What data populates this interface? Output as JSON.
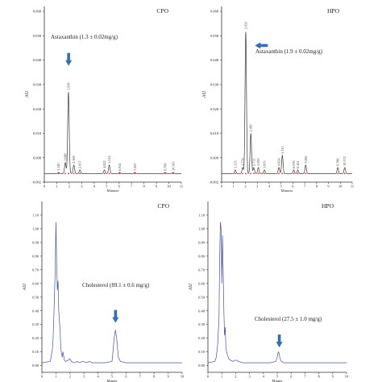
{
  "chart_data": [
    {
      "type": "line",
      "panel": "top-left",
      "title": "CPO",
      "ylabel": "AU",
      "xlabel": "Minutes",
      "xlim": [
        0,
        11
      ],
      "ylim": [
        -0.002,
        0.07
      ],
      "yticks": [
        "0.068",
        "0.058",
        "0.048",
        "0.038",
        "0.028",
        "0.018",
        "0.008",
        "-0.002"
      ],
      "ytick_values": [
        0.068,
        0.058,
        0.048,
        0.038,
        0.028,
        0.018,
        0.008,
        -0.002
      ],
      "xticks": [
        "0",
        "1",
        "2",
        "3",
        "4",
        "5",
        "6",
        "7",
        "8",
        "9",
        "10",
        "11"
      ],
      "annotation": "Astaxanthin (1.3 ± 0.02mg/g)",
      "arrow_target_x": 1.95,
      "arrow_target_y": 0.045,
      "peaks": [
        {
          "label": "1.140",
          "x": 1.14,
          "y": 0.002
        },
        {
          "label": "1.680",
          "x": 1.68,
          "y": 0.006
        },
        {
          "label": "1.936",
          "x": 1.936,
          "y": 0.035
        },
        {
          "label": "2.369",
          "x": 2.369,
          "y": 0.005
        },
        {
          "label": "2.857",
          "x": 2.857,
          "y": 0.003
        },
        {
          "label": "4.822",
          "x": 4.822,
          "y": 0.003
        },
        {
          "label": "5.214",
          "x": 5.214,
          "y": 0.005
        },
        {
          "label": "6.052",
          "x": 6.052,
          "y": 0.002
        },
        {
          "label": "7.267",
          "x": 7.267,
          "y": 0.002
        },
        {
          "label": "9.700",
          "x": 9.7,
          "y": 0.002
        },
        {
          "label": "10.345",
          "x": 10.345,
          "y": 0.002
        }
      ],
      "series_color": "#3a3a3a",
      "label_color": "#444444"
    },
    {
      "type": "line",
      "panel": "top-right",
      "title": "HPO",
      "ylabel": "AU",
      "xlabel": "Minutes",
      "xlim": [
        0,
        11
      ],
      "ylim": [
        -0.002,
        0.07
      ],
      "yticks": [
        "0.068",
        "0.058",
        "0.048",
        "0.038",
        "0.028",
        "0.018",
        "0.008",
        "-0.002"
      ],
      "ytick_values": [
        0.068,
        0.058,
        0.048,
        0.038,
        0.028,
        0.018,
        0.008,
        -0.002
      ],
      "xticks": [
        "0",
        "1",
        "2",
        "3",
        "4",
        "5",
        "6",
        "7",
        "8",
        "9",
        "10",
        "11"
      ],
      "annotation": "Astaxanthin (1.9 ± 0.02mg/g)",
      "arrow_target_x": 2.6,
      "arrow_target_y": 0.054,
      "peaks": [
        {
          "label": "1.153",
          "x": 1.153,
          "y": 0.003
        },
        {
          "label": "1.774",
          "x": 1.774,
          "y": 0.004
        },
        {
          "label": "2.033",
          "x": 2.033,
          "y": 0.06
        },
        {
          "label": "2.461",
          "x": 2.461,
          "y": 0.018
        },
        {
          "label": "2.711",
          "x": 2.711,
          "y": 0.004
        },
        {
          "label": "3.093",
          "x": 3.093,
          "y": 0.004
        },
        {
          "label": "3.603",
          "x": 3.603,
          "y": 0.003
        },
        {
          "label": "4.824",
          "x": 4.824,
          "y": 0.004
        },
        {
          "label": "5.115",
          "x": 5.115,
          "y": 0.009
        },
        {
          "label": "6.076",
          "x": 6.076,
          "y": 0.003
        },
        {
          "label": "6.421",
          "x": 6.421,
          "y": 0.003
        },
        {
          "label": "7.082",
          "x": 7.082,
          "y": 0.005
        },
        {
          "label": "9.786",
          "x": 9.786,
          "y": 0.004
        },
        {
          "label": "10.372",
          "x": 10.372,
          "y": 0.004
        }
      ],
      "series_color": "#3a3a3a",
      "label_color": "#444444"
    },
    {
      "type": "line",
      "panel": "bottom-left",
      "title": "CPO",
      "ylabel": "AU",
      "xlabel": "Minute",
      "xlim": [
        0,
        10
      ],
      "ylim": [
        -0.05,
        1.2
      ],
      "yticks": [
        "1.10",
        "1.00",
        "0.90",
        "0.80",
        "0.70",
        "0.60",
        "0.50",
        "0.40",
        "0.30",
        "0.20",
        "0.10",
        "0.00"
      ],
      "ytick_values": [
        1.1,
        1.0,
        0.9,
        0.8,
        0.7,
        0.6,
        0.5,
        0.4,
        0.3,
        0.2,
        0.1,
        0.0
      ],
      "xticks": [
        "0",
        "1",
        "2",
        "3",
        "4",
        "5",
        "6",
        "7",
        "8",
        "9",
        "10"
      ],
      "annotation": "Cholesterol (89.1 ± 0.6 mg/g)",
      "arrow_target_x": 5.25,
      "arrow_target_y": 0.3,
      "trace": {
        "x": [
          0,
          0.6,
          0.75,
          0.8,
          0.85,
          0.95,
          1.0,
          1.05,
          1.1,
          1.15,
          1.2,
          1.3,
          1.35,
          1.45,
          1.5,
          1.6,
          1.7,
          1.9,
          2.0,
          2.1,
          2.3,
          2.5,
          2.7,
          2.9,
          3.2,
          3.4,
          3.6,
          4.0,
          4.5,
          5.0,
          5.05,
          5.15,
          5.25,
          5.35,
          5.45,
          5.6,
          6.0,
          7.0,
          8.0,
          9.0,
          10.0
        ],
        "y": [
          0.02,
          0.03,
          0.12,
          0.2,
          0.35,
          0.7,
          1.05,
          0.75,
          0.55,
          0.62,
          0.4,
          0.25,
          0.12,
          0.06,
          0.1,
          0.04,
          0.03,
          0.04,
          0.05,
          0.03,
          0.02,
          0.03,
          0.02,
          0.03,
          0.02,
          0.03,
          0.02,
          0.02,
          0.02,
          0.03,
          0.08,
          0.2,
          0.26,
          0.18,
          0.06,
          0.03,
          0.02,
          0.02,
          0.02,
          0.02,
          0.02
        ]
      },
      "series_color": "#4a4fa8"
    },
    {
      "type": "line",
      "panel": "bottom-right",
      "title": "HPO",
      "ylabel": "AU",
      "xlabel": "Minute",
      "xlim": [
        0,
        10
      ],
      "ylim": [
        -0.05,
        1.2
      ],
      "yticks": [
        "1.10",
        "1.00",
        "0.90",
        "0.80",
        "0.70",
        "0.60",
        "0.50",
        "0.40",
        "0.30",
        "0.20",
        "0.10",
        "0.00"
      ],
      "ytick_values": [
        1.1,
        1.0,
        0.9,
        0.8,
        0.7,
        0.6,
        0.5,
        0.4,
        0.3,
        0.2,
        0.1,
        0.0
      ],
      "xticks": [
        "0",
        "1",
        "2",
        "3",
        "4",
        "5",
        "6",
        "7",
        "8",
        "9",
        "10"
      ],
      "annotation": "Cholesterol (27.5 ± 1.0 mg/g)",
      "arrow_target_x": 5.15,
      "arrow_target_y": 0.12,
      "trace": {
        "x": [
          0,
          0.5,
          0.6,
          0.7,
          0.8,
          0.85,
          0.9,
          0.95,
          1.0,
          1.05,
          1.1,
          1.15,
          1.2,
          1.25,
          1.3,
          1.4,
          1.5,
          1.6,
          1.8,
          2.0,
          2.2,
          2.5,
          3.0,
          3.5,
          4.0,
          4.5,
          4.9,
          5.0,
          5.05,
          5.1,
          5.15,
          5.2,
          5.3,
          5.5,
          6.0,
          7.0,
          8.0,
          9.0,
          10.0
        ],
        "y": [
          0.02,
          0.03,
          0.06,
          0.15,
          0.35,
          0.8,
          1.05,
          1.0,
          0.6,
          0.95,
          0.7,
          0.4,
          0.22,
          0.28,
          0.12,
          0.08,
          0.05,
          0.04,
          0.03,
          0.04,
          0.03,
          0.02,
          0.02,
          0.02,
          0.02,
          0.02,
          0.03,
          0.06,
          0.09,
          0.1,
          0.08,
          0.05,
          0.03,
          0.02,
          0.02,
          0.02,
          0.02,
          0.02,
          0.02
        ]
      },
      "series_color": "#4a4fa8"
    }
  ],
  "colors": {
    "arrow": "#2f6fbd",
    "axis": "#333333",
    "text": "#222222",
    "marker": "#cc2b2b"
  }
}
